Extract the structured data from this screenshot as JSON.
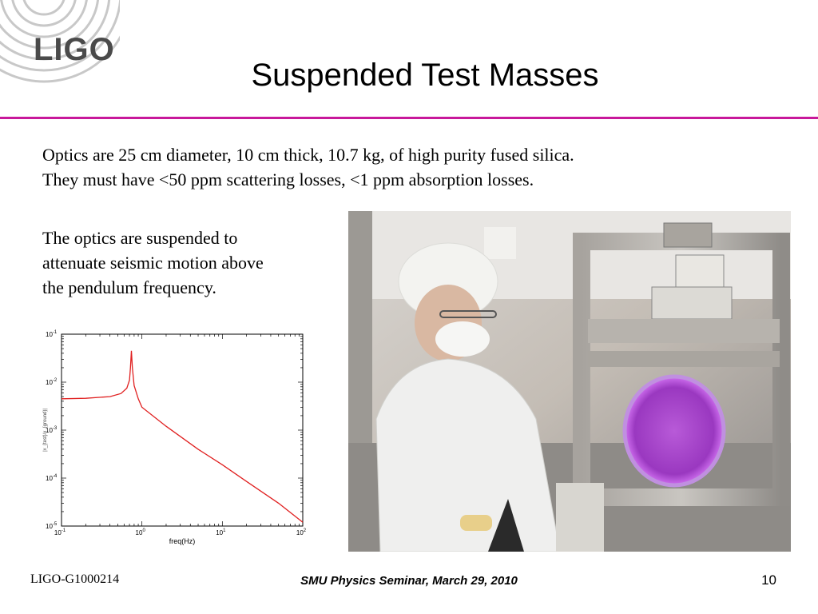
{
  "logo": {
    "text": "LIGO"
  },
  "title": "Suspended Test Masses",
  "body": {
    "para1_line1": "Optics are 25 cm diameter, 10 cm thick, 10.7 kg, of high purity fused silica.",
    "para1_line2": "They must have <50 ppm scattering losses, <1 ppm absorption losses.",
    "para2_line1": "The optics are suspended to",
    "para2_line2": "attenuate seismic motion above",
    "para2_line3": "the pendulum frequency."
  },
  "chart_data": {
    "type": "line",
    "title": "",
    "xlabel": "freq(Hz)",
    "ylabel": "",
    "xscale": "log",
    "yscale": "log",
    "xlim": [
      0.1,
      100
    ],
    "ylim": [
      1e-05,
      0.1
    ],
    "x_ticks": [
      {
        "base": "10",
        "exp": "-1"
      },
      {
        "base": "10",
        "exp": "0"
      },
      {
        "base": "10",
        "exp": "1"
      },
      {
        "base": "10",
        "exp": "2"
      }
    ],
    "y_ticks": [
      {
        "base": "10",
        "exp": "-1"
      },
      {
        "base": "10",
        "exp": "-2"
      },
      {
        "base": "10",
        "exp": "-3"
      },
      {
        "base": "10",
        "exp": "-4"
      },
      {
        "base": "10",
        "exp": "-5"
      }
    ],
    "series": [
      {
        "color": "#e02020",
        "x": [
          0.1,
          0.2,
          0.4,
          0.55,
          0.65,
          0.7,
          0.72,
          0.74,
          0.76,
          0.8,
          0.9,
          1.0,
          2.0,
          5.0,
          10.0,
          20.0,
          50.0,
          100.0
        ],
        "y": [
          0.0045,
          0.0046,
          0.005,
          0.0058,
          0.0075,
          0.011,
          0.02,
          0.045,
          0.02,
          0.0085,
          0.0045,
          0.003,
          0.0012,
          0.0004,
          0.00019,
          8.5e-05,
          3e-05,
          1.2e-05
        ]
      }
    ]
  },
  "photo": {
    "label_name": "cleanroom-photo"
  },
  "footer": {
    "doc_id": "LIGO-G1000214",
    "event": "SMU Physics Seminar, March 29, 2010",
    "page": "10"
  },
  "colors": {
    "rule": "#c8189b",
    "logo": "#4a4a4a",
    "curve": "#e02020"
  }
}
